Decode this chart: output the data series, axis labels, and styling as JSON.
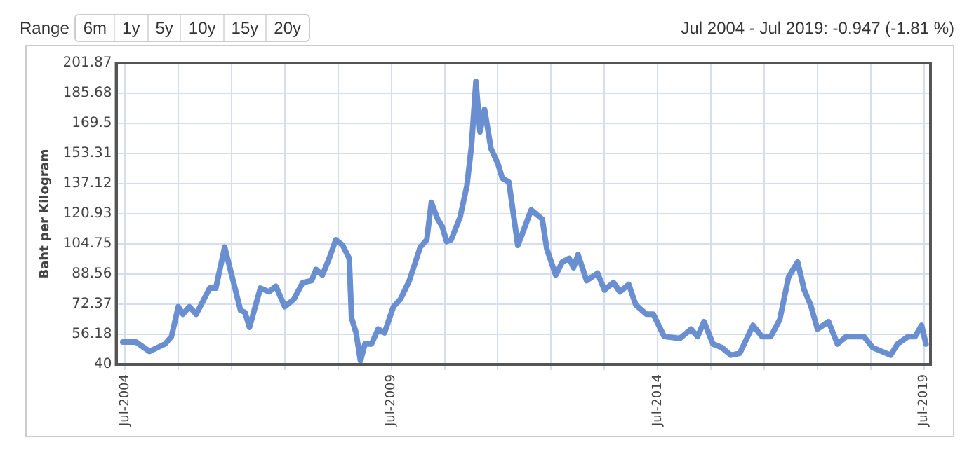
{
  "chart_data": {
    "type": "line",
    "subtitle": "Jul 2004 - Jul 2019: -0.947 (-1.81 %)",
    "annotations": [
      "Range",
      "6m",
      "1y",
      "5y",
      "10y",
      "15y",
      "20y"
    ],
    "ylabel": "Baht per Kilogram",
    "x": [
      "2004-06-15",
      "2004-09-15",
      "2004-12-15",
      "2005-04-01",
      "2005-05-15",
      "2005-07-01",
      "2005-08-01",
      "2005-09-15",
      "2005-11-01",
      "2006-02-01",
      "2006-03-15",
      "2006-05-15",
      "2006-09-01",
      "2006-10-01",
      "2006-11-01",
      "2007-01-15",
      "2007-03-15",
      "2007-05-01",
      "2007-07-01",
      "2007-09-01",
      "2007-11-01",
      "2008-01-01",
      "2008-02-01",
      "2008-03-15",
      "2008-05-01",
      "2008-06-15",
      "2008-08-01",
      "2008-09-15",
      "2008-10-01",
      "2008-11-01",
      "2008-12-01",
      "2009-01-01",
      "2009-02-15",
      "2009-04-01",
      "2009-05-15",
      "2009-07-15",
      "2009-09-01",
      "2009-11-01",
      "2010-01-15",
      "2010-03-01",
      "2010-04-01",
      "2010-05-15",
      "2010-06-15",
      "2010-07-15",
      "2010-08-15",
      "2010-10-15",
      "2010-12-01",
      "2011-01-01",
      "2011-02-01",
      "2011-03-01",
      "2011-04-01",
      "2011-05-15",
      "2011-07-01",
      "2011-08-01",
      "2011-09-15",
      "2011-11-15",
      "2011-12-15",
      "2012-02-15",
      "2012-04-01",
      "2012-05-01",
      "2012-06-01",
      "2012-08-01",
      "2012-09-15",
      "2012-11-01",
      "2012-12-01",
      "2013-01-01",
      "2013-03-01",
      "2013-05-15",
      "2013-07-01",
      "2013-09-01",
      "2013-10-15",
      "2013-12-15",
      "2014-02-01",
      "2014-04-15",
      "2014-06-01",
      "2014-08-15",
      "2014-12-01",
      "2015-02-15",
      "2015-04-01",
      "2015-05-15",
      "2015-07-15",
      "2015-09-15",
      "2015-11-15",
      "2016-01-15",
      "2016-04-15",
      "2016-06-15",
      "2016-08-15",
      "2016-10-15",
      "2016-12-15",
      "2017-02-15",
      "2017-04-01",
      "2017-05-15",
      "2017-07-01",
      "2017-09-15",
      "2017-11-15",
      "2018-01-15",
      "2018-03-15",
      "2018-05-15",
      "2018-07-15",
      "2018-09-15",
      "2018-11-15",
      "2019-01-01",
      "2019-03-15",
      "2019-05-01",
      "2019-06-15",
      "2019-07-15"
    ],
    "series": [
      {
        "color": "#6a8fd0",
        "values": [
          52,
          52,
          47,
          51,
          55,
          71,
          67,
          71,
          67,
          81,
          81,
          103,
          69,
          68,
          60,
          81,
          79,
          82,
          71,
          75,
          84,
          85,
          91,
          88,
          97,
          107,
          104,
          97,
          65,
          57,
          42,
          51,
          51,
          59,
          57,
          71,
          75,
          85,
          103,
          107,
          127,
          118,
          114,
          106,
          107,
          119,
          136,
          157,
          192,
          165,
          177,
          156,
          148,
          140,
          138,
          104,
          110,
          123,
          120,
          118,
          102,
          88,
          95,
          97,
          92,
          99,
          85,
          89,
          80,
          84,
          79,
          83,
          72,
          67,
          67,
          55,
          54,
          59,
          55,
          63,
          51,
          49,
          45,
          46,
          61,
          55,
          55,
          64,
          87,
          95,
          80,
          72,
          59,
          63,
          51,
          55,
          55,
          55,
          49,
          47,
          45,
          51,
          55,
          55,
          61,
          51
        ]
      }
    ],
    "xlim": [
      "2004-05-01",
      "2019-08-15"
    ],
    "xticks": [
      {
        "value": "2004-07-01",
        "label": "Jul-2004"
      },
      {
        "value": "2005-07-01",
        "label": null
      },
      {
        "value": "2006-07-01",
        "label": null
      },
      {
        "value": "2007-07-01",
        "label": null
      },
      {
        "value": "2008-07-01",
        "label": null
      },
      {
        "value": "2009-07-01",
        "label": "Jul-2009"
      },
      {
        "value": "2010-07-01",
        "label": null
      },
      {
        "value": "2011-07-01",
        "label": null
      },
      {
        "value": "2012-07-01",
        "label": null
      },
      {
        "value": "2013-07-01",
        "label": null
      },
      {
        "value": "2014-07-01",
        "label": "Jul-2014"
      },
      {
        "value": "2015-07-01",
        "label": null
      },
      {
        "value": "2016-07-01",
        "label": null
      },
      {
        "value": "2017-07-01",
        "label": null
      },
      {
        "value": "2018-07-01",
        "label": null
      },
      {
        "value": "2019-07-01",
        "label": "Jul-2019"
      }
    ],
    "ylim": [
      40,
      201.87
    ],
    "yticks": [
      40,
      56.18,
      72.37,
      88.56,
      104.75,
      120.93,
      137.12,
      153.31,
      169.5,
      185.68,
      201.87
    ],
    "grid": true,
    "marker": "none",
    "line_style": "solid",
    "legend": false
  }
}
